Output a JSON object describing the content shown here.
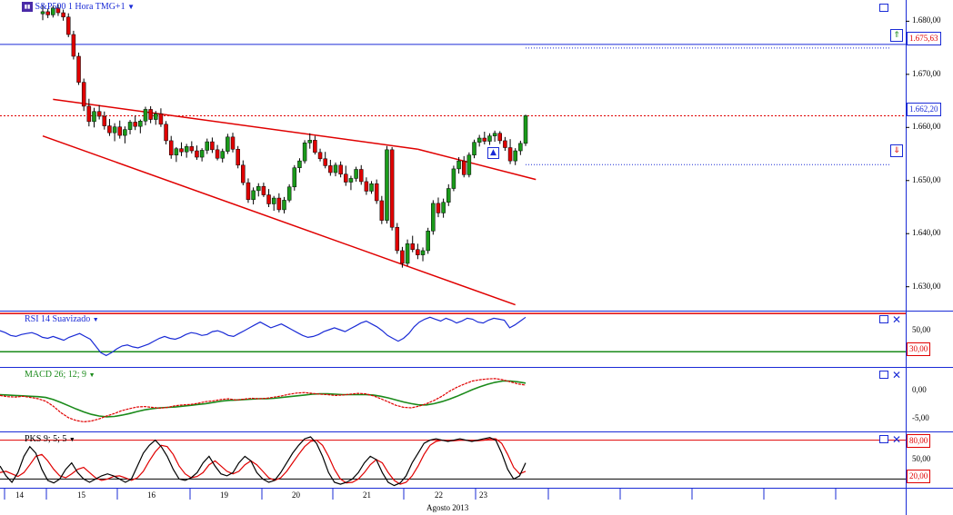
{
  "main": {
    "title": "S&P500 1 Hora TMG+1",
    "price_ticks": [
      "1.680,00",
      "1.670,00",
      "1.660,00",
      "1.650,00",
      "1.640,00",
      "1.630,00"
    ],
    "last_price": "1.662,20",
    "upper_level": "1.675,63",
    "upper_level_color": "#1a2bd6",
    "last_price_color": "#e00000",
    "candles": [
      [
        1681.4,
        1683.1,
        1680.2,
        1681.8
      ],
      [
        1681.8,
        1682.4,
        1680.6,
        1681.2
      ],
      [
        1681.2,
        1682.9,
        1680.7,
        1682.5
      ],
      [
        1682.5,
        1683.2,
        1681.0,
        1681.6
      ],
      [
        1681.6,
        1682.2,
        1680.1,
        1680.8
      ],
      [
        1680.8,
        1681.5,
        1677.0,
        1677.5
      ],
      [
        1677.5,
        1678.2,
        1672.8,
        1673.4
      ],
      [
        1673.4,
        1674.1,
        1668.0,
        1668.5
      ],
      [
        1668.5,
        1669.2,
        1663.1,
        1664.0
      ],
      [
        1664.0,
        1665.4,
        1660.2,
        1661.1
      ],
      [
        1661.1,
        1663.7,
        1660.0,
        1663.0
      ],
      [
        1663.0,
        1664.2,
        1661.5,
        1662.1
      ],
      [
        1662.1,
        1663.0,
        1659.6,
        1660.3
      ],
      [
        1660.3,
        1661.6,
        1658.4,
        1659.0
      ],
      [
        1659.0,
        1660.8,
        1657.4,
        1660.1
      ],
      [
        1660.1,
        1661.3,
        1657.9,
        1658.5
      ],
      [
        1658.5,
        1660.2,
        1657.0,
        1659.6
      ],
      [
        1659.6,
        1661.4,
        1658.7,
        1661.0
      ],
      [
        1661.0,
        1662.2,
        1659.5,
        1660.2
      ],
      [
        1660.2,
        1661.5,
        1658.9,
        1661.2
      ],
      [
        1661.2,
        1663.9,
        1660.4,
        1663.4
      ],
      [
        1663.4,
        1664.0,
        1660.8,
        1661.5
      ],
      [
        1661.5,
        1663.1,
        1660.5,
        1662.6
      ],
      [
        1662.6,
        1663.6,
        1660.1,
        1660.6
      ],
      [
        1660.6,
        1661.2,
        1656.8,
        1657.5
      ],
      [
        1657.5,
        1658.4,
        1654.1,
        1654.8
      ],
      [
        1654.8,
        1656.3,
        1653.5,
        1656.0
      ],
      [
        1656.0,
        1657.2,
        1654.6,
        1655.4
      ],
      [
        1655.4,
        1656.9,
        1654.3,
        1656.4
      ],
      [
        1656.4,
        1657.4,
        1655.1,
        1655.6
      ],
      [
        1655.6,
        1656.6,
        1653.9,
        1654.4
      ],
      [
        1654.4,
        1656.1,
        1653.6,
        1655.7
      ],
      [
        1655.7,
        1657.9,
        1655.0,
        1657.3
      ],
      [
        1657.3,
        1658.1,
        1655.2,
        1655.8
      ],
      [
        1655.8,
        1656.7,
        1653.8,
        1654.2
      ],
      [
        1654.2,
        1656.0,
        1653.4,
        1655.5
      ],
      [
        1655.5,
        1658.8,
        1655.0,
        1658.2
      ],
      [
        1658.2,
        1659.0,
        1655.3,
        1655.9
      ],
      [
        1655.9,
        1656.5,
        1652.3,
        1652.9
      ],
      [
        1652.9,
        1653.8,
        1649.1,
        1649.6
      ],
      [
        1649.6,
        1650.4,
        1645.8,
        1646.4
      ],
      [
        1646.4,
        1648.7,
        1645.5,
        1648.1
      ],
      [
        1648.1,
        1649.5,
        1647.0,
        1648.9
      ],
      [
        1648.9,
        1649.6,
        1646.9,
        1647.3
      ],
      [
        1647.3,
        1648.4,
        1645.0,
        1645.6
      ],
      [
        1645.6,
        1647.1,
        1644.3,
        1646.7
      ],
      [
        1646.7,
        1647.6,
        1644.0,
        1644.5
      ],
      [
        1644.5,
        1646.9,
        1643.8,
        1646.3
      ],
      [
        1646.3,
        1649.3,
        1645.9,
        1648.8
      ],
      [
        1648.8,
        1652.9,
        1648.1,
        1652.4
      ],
      [
        1652.4,
        1654.2,
        1651.5,
        1653.7
      ],
      [
        1653.7,
        1657.6,
        1653.2,
        1657.1
      ],
      [
        1657.1,
        1658.9,
        1656.0,
        1657.6
      ],
      [
        1657.6,
        1658.4,
        1654.9,
        1655.3
      ],
      [
        1655.3,
        1656.0,
        1653.6,
        1654.1
      ],
      [
        1654.1,
        1655.4,
        1652.3,
        1652.8
      ],
      [
        1652.8,
        1653.9,
        1650.9,
        1651.5
      ],
      [
        1651.5,
        1653.4,
        1650.8,
        1652.9
      ],
      [
        1652.9,
        1653.6,
        1650.6,
        1651.2
      ],
      [
        1651.2,
        1652.8,
        1649.0,
        1649.7
      ],
      [
        1649.7,
        1650.9,
        1648.2,
        1650.4
      ],
      [
        1650.4,
        1652.6,
        1649.8,
        1652.1
      ],
      [
        1652.1,
        1652.9,
        1649.2,
        1649.8
      ],
      [
        1649.8,
        1650.6,
        1647.3,
        1648.0
      ],
      [
        1648.0,
        1649.9,
        1647.5,
        1649.4
      ],
      [
        1649.4,
        1650.2,
        1645.6,
        1646.2
      ],
      [
        1646.2,
        1647.1,
        1641.8,
        1642.5
      ],
      [
        1642.5,
        1656.5,
        1641.9,
        1655.8
      ],
      [
        1655.8,
        1656.3,
        1640.6,
        1641.2
      ],
      [
        1641.2,
        1642.0,
        1636.2,
        1636.8
      ],
      [
        1636.8,
        1637.5,
        1633.6,
        1634.4
      ],
      [
        1634.4,
        1638.9,
        1633.9,
        1638.1
      ],
      [
        1638.1,
        1639.6,
        1636.5,
        1637.0
      ],
      [
        1637.0,
        1638.1,
        1635.2,
        1636.0
      ],
      [
        1636.0,
        1637.4,
        1634.8,
        1636.8
      ],
      [
        1636.8,
        1641.1,
        1636.2,
        1640.5
      ],
      [
        1640.5,
        1646.3,
        1639.8,
        1645.7
      ],
      [
        1645.7,
        1646.8,
        1643.1,
        1643.9
      ],
      [
        1643.9,
        1646.6,
        1643.0,
        1645.9
      ],
      [
        1645.9,
        1649.3,
        1645.2,
        1648.5
      ],
      [
        1648.5,
        1652.8,
        1648.0,
        1652.2
      ],
      [
        1652.2,
        1654.4,
        1651.3,
        1653.7
      ],
      [
        1653.7,
        1654.6,
        1650.6,
        1651.1
      ],
      [
        1651.1,
        1655.3,
        1650.6,
        1654.8
      ],
      [
        1654.8,
        1657.7,
        1654.2,
        1657.2
      ],
      [
        1657.2,
        1658.6,
        1656.4,
        1658.0
      ],
      [
        1658.0,
        1659.2,
        1656.8,
        1657.4
      ],
      [
        1657.4,
        1658.9,
        1656.7,
        1658.4
      ],
      [
        1658.4,
        1659.4,
        1657.3,
        1658.9
      ],
      [
        1658.9,
        1659.3,
        1656.9,
        1657.5
      ],
      [
        1657.5,
        1658.2,
        1655.6,
        1656.2
      ],
      [
        1656.2,
        1657.8,
        1653.1,
        1653.7
      ],
      [
        1653.7,
        1656.1,
        1652.9,
        1655.6
      ],
      [
        1655.6,
        1657.5,
        1654.8,
        1657.0
      ],
      [
        1657.0,
        1662.4,
        1656.5,
        1662.2
      ]
    ],
    "trendlines": [
      {
        "p1": [
          2,
          1665.3
        ],
        "p2": [
          73,
          1655.9
        ],
        "color": "#e00000"
      },
      {
        "p1": [
          73,
          1655.9
        ],
        "p2": [
          96,
          1650.2
        ],
        "color": "#e00000"
      },
      {
        "p1": [
          0,
          1658.4
        ],
        "p2": [
          92,
          1626.6
        ],
        "color": "#e00000"
      }
    ]
  },
  "rsi": {
    "title": "RSI 14 Suavizado",
    "ticks": [
      "50,00"
    ],
    "level_label": "30,00",
    "upper_level": 70,
    "lower_level": 30,
    "ylim": [
      15,
      72
    ],
    "values": [
      52,
      50,
      47,
      46,
      48,
      49,
      50,
      48,
      45,
      44,
      46,
      44,
      42,
      45,
      47,
      49,
      46,
      43,
      36,
      29,
      26,
      29,
      33,
      36,
      37,
      35,
      34,
      36,
      38,
      41,
      44,
      46,
      44,
      43,
      45,
      48,
      50,
      49,
      47,
      48,
      51,
      52,
      50,
      47,
      46,
      49,
      52,
      55,
      58,
      61,
      58,
      55,
      57,
      59,
      56,
      53,
      50,
      47,
      45,
      46,
      48,
      51,
      53,
      55,
      53,
      51,
      54,
      57,
      60,
      62,
      59,
      56,
      52,
      47,
      44,
      41,
      44,
      49,
      56,
      61,
      64,
      66,
      64,
      62,
      65,
      63,
      60,
      62,
      65,
      64,
      61,
      60,
      63,
      65,
      64,
      63,
      55,
      58,
      62,
      66
    ]
  },
  "macd": {
    "title": "MACD 26; 12; 9",
    "ticks": [
      "0,00",
      "-5,00"
    ],
    "ylim": [
      -8.5,
      6.5
    ],
    "macd_color": "#e00000",
    "signal_color": "#1a8a1a",
    "macd": [
      -0.2,
      -0.5,
      -0.6,
      -0.4,
      -0.7,
      -1.0,
      -1.6,
      -2.8,
      -4.4,
      -5.6,
      -6.3,
      -6.6,
      -6.4,
      -5.9,
      -5.2,
      -4.6,
      -3.9,
      -3.4,
      -3.0,
      -2.9,
      -3.1,
      -3.3,
      -3.1,
      -2.7,
      -2.5,
      -2.4,
      -2.1,
      -1.7,
      -1.5,
      -1.2,
      -1.0,
      -1.3,
      -1.1,
      -0.9,
      -1.0,
      -0.9,
      -0.6,
      -0.3,
      0.1,
      0.4,
      0.5,
      0.3,
      0.1,
      0.0,
      -0.2,
      -0.1,
      0.1,
      0.3,
      0.2,
      -0.3,
      -1.0,
      -1.8,
      -2.6,
      -3.1,
      -3.2,
      -2.8,
      -2.2,
      -1.4,
      -0.4,
      0.8,
      1.8,
      2.6,
      3.3,
      3.6,
      3.8,
      3.9,
      3.6,
      3.1,
      2.6,
      2.3
    ],
    "signal": [
      0.0,
      -0.1,
      -0.2,
      -0.3,
      -0.4,
      -0.5,
      -0.7,
      -1.2,
      -1.9,
      -2.7,
      -3.5,
      -4.2,
      -4.8,
      -5.2,
      -5.4,
      -5.3,
      -5.0,
      -4.6,
      -4.1,
      -3.7,
      -3.4,
      -3.2,
      -3.1,
      -3.0,
      -2.8,
      -2.6,
      -2.4,
      -2.2,
      -1.9,
      -1.6,
      -1.4,
      -1.3,
      -1.2,
      -1.1,
      -1.0,
      -1.0,
      -0.9,
      -0.7,
      -0.5,
      -0.3,
      -0.1,
      0.1,
      0.2,
      0.2,
      0.1,
      0.0,
      0.0,
      0.0,
      0.0,
      -0.1,
      -0.4,
      -0.8,
      -1.3,
      -1.8,
      -2.2,
      -2.5,
      -2.5,
      -2.2,
      -1.7,
      -1.1,
      -0.4,
      0.4,
      1.2,
      1.9,
      2.5,
      3.0,
      3.3,
      3.3,
      3.1,
      2.8
    ]
  },
  "pks": {
    "title": "PKS 9; 5; 5",
    "upper_level": "80,00",
    "ticks": [
      "50,00"
    ],
    "lower_level": "20,00",
    "ylim": [
      8,
      92
    ],
    "k_color": "#000000",
    "d_color": "#e00000",
    "k": [
      40,
      25,
      15,
      30,
      55,
      70,
      60,
      35,
      18,
      14,
      20,
      35,
      45,
      30,
      20,
      15,
      20,
      25,
      28,
      25,
      20,
      15,
      20,
      40,
      60,
      72,
      80,
      70,
      55,
      35,
      20,
      18,
      22,
      30,
      45,
      55,
      40,
      28,
      25,
      30,
      45,
      55,
      48,
      30,
      20,
      15,
      18,
      30,
      45,
      60,
      72,
      82,
      85,
      75,
      55,
      30,
      15,
      12,
      15,
      20,
      30,
      45,
      55,
      50,
      30,
      15,
      10,
      14,
      25,
      45,
      60,
      75,
      80,
      82,
      80,
      78,
      80,
      82,
      80,
      78,
      80,
      82,
      84,
      80,
      60,
      35,
      20,
      25,
      45
    ],
    "d": [
      30,
      32,
      28,
      24,
      30,
      42,
      55,
      58,
      48,
      35,
      25,
      22,
      28,
      35,
      38,
      30,
      22,
      18,
      20,
      24,
      25,
      22,
      18,
      22,
      32,
      48,
      62,
      72,
      70,
      58,
      40,
      28,
      22,
      24,
      30,
      42,
      48,
      40,
      32,
      28,
      32,
      42,
      48,
      42,
      32,
      22,
      18,
      22,
      32,
      45,
      58,
      70,
      78,
      80,
      72,
      55,
      35,
      20,
      14,
      15,
      20,
      30,
      42,
      50,
      45,
      30,
      18,
      12,
      15,
      25,
      40,
      58,
      72,
      78,
      80,
      79,
      79,
      80,
      80,
      79,
      79,
      80,
      82,
      82,
      75,
      58,
      38,
      28,
      32
    ]
  },
  "x_axis": {
    "days": [
      "14",
      "15",
      "16",
      "19",
      "20",
      "21",
      "22",
      "23"
    ],
    "month": "Agosto 2013"
  },
  "icons": {
    "alert_up": "alert-up-icon",
    "alert_down": "alert-down-icon",
    "window": "window-icon",
    "close": "close-icon"
  }
}
